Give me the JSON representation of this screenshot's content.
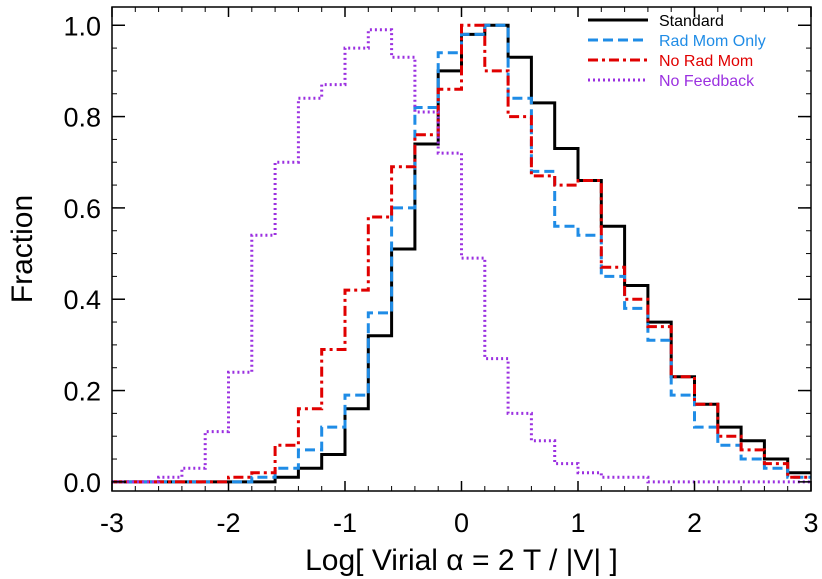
{
  "chart_data": {
    "type": "line",
    "title": "",
    "xlabel": "Log[ Virial α = 2 T / |V| ]",
    "ylabel": "Fraction",
    "xlim": [
      -3,
      3
    ],
    "ylim": [
      -0.02,
      1.04
    ],
    "x_ticks": [
      -3,
      -2,
      -1,
      0,
      1,
      2,
      3
    ],
    "x_tick_labels": [
      "-3",
      "-2",
      "-1",
      "0",
      "1",
      "2",
      "3"
    ],
    "y_ticks": [
      0.0,
      0.2,
      0.4,
      0.6,
      0.8,
      1.0
    ],
    "y_tick_labels": [
      "0.0",
      "0.2",
      "0.4",
      "0.6",
      "0.8",
      "1.0"
    ],
    "grid": false,
    "legend_position": "top-right",
    "bin_edges": [
      -3.0,
      -2.8,
      -2.6,
      -2.4,
      -2.2,
      -2.0,
      -1.8,
      -1.6,
      -1.4,
      -1.2,
      -1.0,
      -0.8,
      -0.6,
      -0.4,
      -0.2,
      0.0,
      0.2,
      0.4,
      0.6,
      0.8,
      1.0,
      1.2,
      1.4,
      1.6,
      1.8,
      2.0,
      2.2,
      2.4,
      2.6,
      2.8,
      3.0
    ],
    "series": [
      {
        "name": "Standard",
        "color": "#000000",
        "dash": "solid",
        "values": [
          0.0,
          0.0,
          0.0,
          0.0,
          0.0,
          0.0,
          0.0,
          0.01,
          0.03,
          0.06,
          0.16,
          0.32,
          0.51,
          0.74,
          0.9,
          0.98,
          1.0,
          0.93,
          0.83,
          0.73,
          0.66,
          0.56,
          0.43,
          0.35,
          0.23,
          0.17,
          0.12,
          0.09,
          0.05,
          0.02
        ]
      },
      {
        "name": "Rad Mom Only",
        "color": "#1f8ce6",
        "dash": "dashed",
        "values": [
          0.0,
          0.0,
          0.0,
          0.0,
          0.0,
          0.0,
          0.01,
          0.03,
          0.07,
          0.12,
          0.19,
          0.37,
          0.6,
          0.82,
          0.94,
          0.98,
          1.0,
          0.84,
          0.68,
          0.56,
          0.54,
          0.45,
          0.38,
          0.31,
          0.19,
          0.12,
          0.08,
          0.05,
          0.03,
          0.01
        ]
      },
      {
        "name": "No Rad Mom",
        "color": "#e00000",
        "dash": "dashdot",
        "values": [
          0.0,
          0.0,
          0.0,
          0.0,
          0.0,
          0.01,
          0.02,
          0.08,
          0.16,
          0.29,
          0.42,
          0.58,
          0.69,
          0.76,
          0.86,
          1.0,
          0.9,
          0.8,
          0.67,
          0.65,
          0.66,
          0.47,
          0.4,
          0.34,
          0.23,
          0.17,
          0.1,
          0.07,
          0.04,
          0.01
        ]
      },
      {
        "name": "No Feedback",
        "color": "#9b30e0",
        "dash": "dotted",
        "values": [
          0.0,
          0.0,
          0.01,
          0.03,
          0.11,
          0.24,
          0.54,
          0.7,
          0.84,
          0.87,
          0.95,
          0.99,
          0.93,
          0.81,
          0.72,
          0.49,
          0.27,
          0.15,
          0.09,
          0.04,
          0.02,
          0.01,
          0.01,
          0.0,
          0.0,
          0.0,
          0.0,
          0.0,
          0.0,
          0.0
        ]
      }
    ]
  }
}
